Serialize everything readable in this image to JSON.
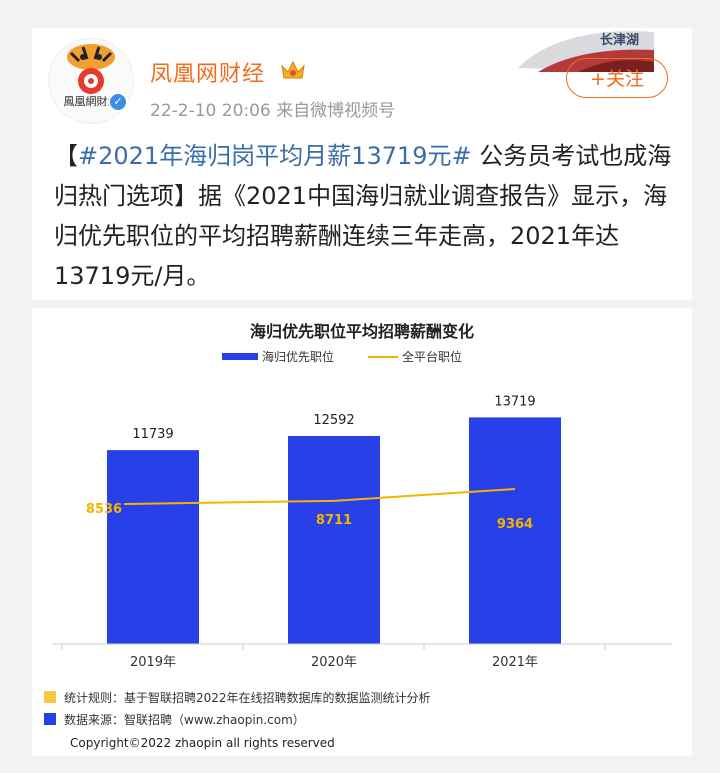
{
  "header": {
    "username": "凤凰网财经",
    "avatar_text": "鳳凰網財經",
    "time": "22-2-10 20:06",
    "source_prefix": "来自",
    "source": "微博视频号",
    "follow_label": "+关注",
    "banner_text": "长津湖"
  },
  "post": {
    "open_bracket": "【",
    "topic": "#2021年海归岗平均月薪13719元#",
    "body": " 公务员考试也成海归热门选项】据《2021中国海归就业调查报告》显示，海归优先职位的平均招聘薪酬连续三年走高，2021年达13719元/月。"
  },
  "colors": {
    "bar": "#2740e8",
    "line": "#f5b400",
    "accent": "#f46b1b"
  },
  "chart_data": {
    "type": "bar",
    "title": "海归优先职位平均招聘薪酬变化",
    "categories": [
      "2019年",
      "2020年",
      "2021年"
    ],
    "series": [
      {
        "name": "海归优先职位",
        "type": "bar",
        "values": [
          11739,
          12592,
          13719
        ]
      },
      {
        "name": "全平台职位",
        "type": "line",
        "values": [
          8536,
          8711,
          9364
        ]
      }
    ],
    "ylim": [
      0,
      15500
    ],
    "grid": false,
    "legend": "top"
  },
  "notes": [
    {
      "text": "统计规则：基于智联招聘2022年在线招聘数据库的数据监测统计分析",
      "color": "#f5c842"
    },
    {
      "text": "数据来源：智联招聘（www.zhaopin.com）",
      "color": "#2740e8"
    }
  ],
  "copyright": "Copyright©2022 zhaopin all rights reserved"
}
